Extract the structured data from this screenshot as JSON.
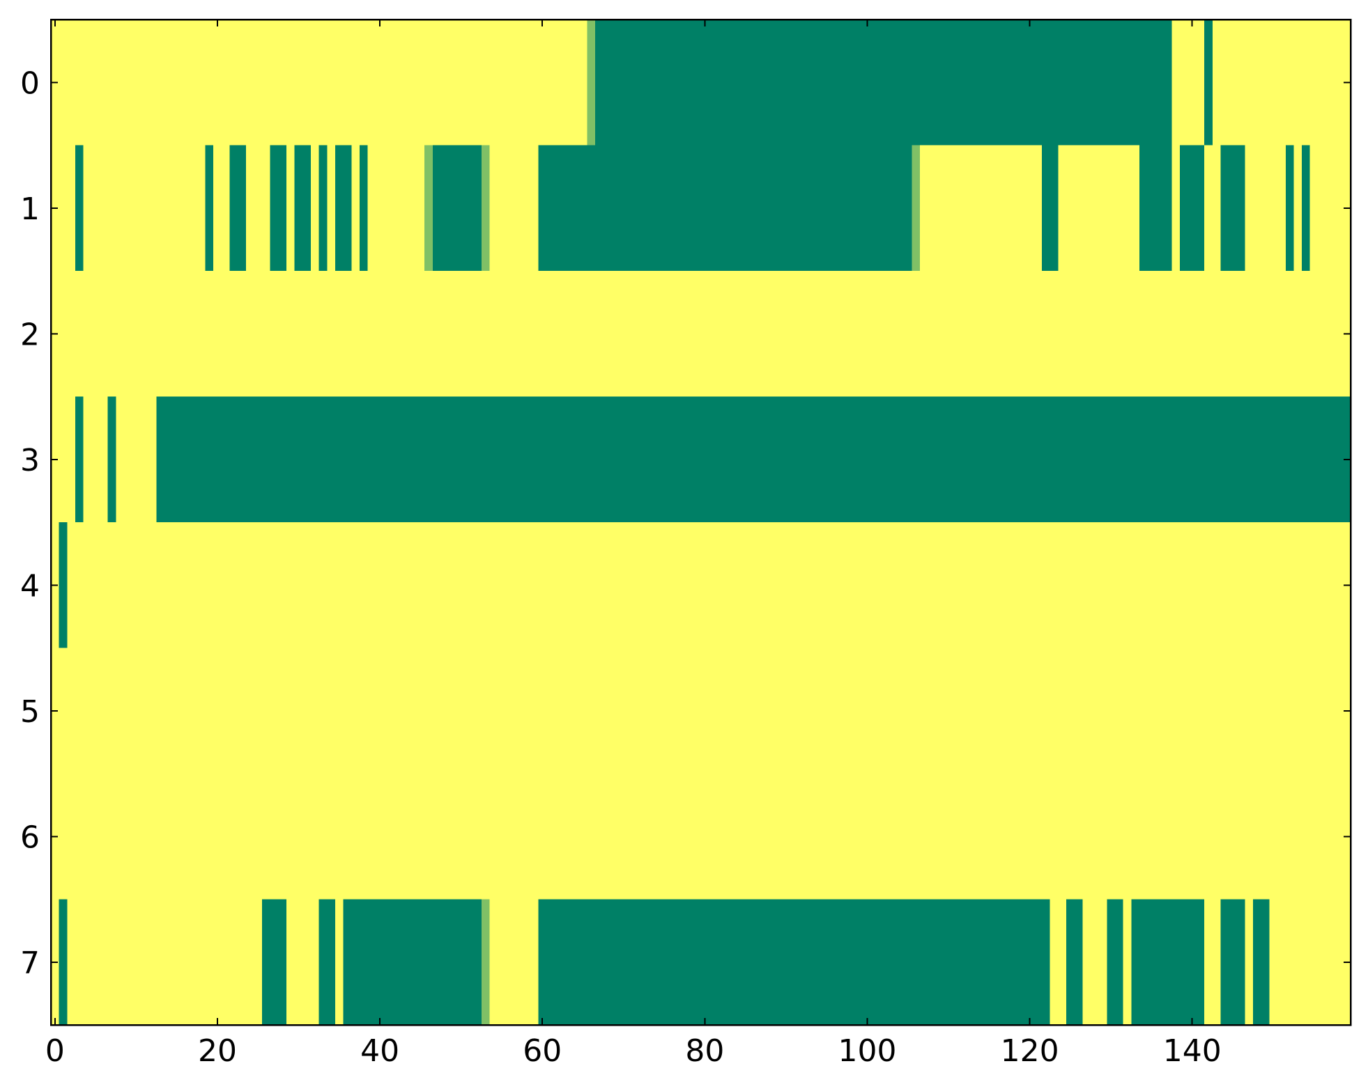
{
  "chart_data": {
    "type": "heatmap",
    "xlim": [
      -0.5,
      159.5
    ],
    "ylim": [
      7.5,
      -0.5
    ],
    "xticks": [
      0,
      20,
      40,
      60,
      80,
      100,
      120,
      140
    ],
    "yticks": [
      0,
      1,
      2,
      3,
      4,
      5,
      6,
      7
    ],
    "zlim": [
      0,
      1
    ],
    "cmap_colors": [
      "#008066",
      "#ffff66"
    ],
    "z": [
      [
        1,
        1,
        1,
        1,
        1,
        1,
        1,
        1,
        1,
        1,
        1,
        1,
        1,
        1,
        1,
        1,
        1,
        1,
        1,
        1,
        1,
        1,
        1,
        1,
        1,
        1,
        1,
        1,
        1,
        1,
        1,
        1,
        1,
        1,
        1,
        1,
        1,
        1,
        1,
        1,
        1,
        1,
        1,
        1,
        1,
        1,
        1,
        1,
        1,
        1,
        1,
        1,
        1,
        1,
        1,
        1,
        1,
        1,
        1,
        1,
        1,
        1,
        1,
        1,
        1,
        1,
        0.5,
        0,
        0,
        0,
        0,
        0,
        0,
        0,
        0,
        0,
        0,
        0,
        0,
        0,
        0,
        0,
        0,
        0,
        0,
        0,
        0,
        0,
        0,
        0,
        0,
        0,
        0,
        0,
        0,
        0,
        0,
        0,
        0,
        0,
        0,
        0,
        0,
        0,
        0,
        0,
        0,
        0,
        0,
        0,
        0,
        0,
        0,
        0,
        0,
        0,
        0,
        0,
        0,
        0,
        0,
        0,
        0,
        0,
        0,
        0,
        0,
        0,
        0,
        0,
        0,
        0,
        0,
        0,
        0,
        0,
        0,
        0,
        1,
        1,
        1,
        1,
        0,
        1,
        1,
        1,
        1,
        1,
        1,
        1,
        1,
        1,
        1,
        1,
        1,
        1,
        1,
        1,
        1,
        1
      ],
      [
        1,
        1,
        1,
        0,
        1,
        1,
        1,
        1,
        1,
        1,
        1,
        1,
        1,
        1,
        1,
        1,
        1,
        1,
        1,
        0,
        1,
        1,
        0,
        0,
        1,
        1,
        1,
        0,
        0,
        1,
        0,
        0,
        1,
        0,
        1,
        0,
        0,
        1,
        0,
        1,
        1,
        1,
        1,
        1,
        1,
        1,
        0.5,
        0,
        0,
        0,
        0,
        0,
        0,
        0.5,
        1,
        1,
        1,
        1,
        1,
        1,
        0,
        0,
        0,
        0,
        0,
        0,
        0,
        0,
        0,
        0,
        0,
        0,
        0,
        0,
        0,
        0,
        0,
        0,
        0,
        0,
        0,
        0,
        0,
        0,
        0,
        0,
        0,
        0,
        0,
        0,
        0,
        0,
        0,
        0,
        0,
        0,
        0,
        0,
        0,
        0,
        0,
        0,
        0,
        0,
        0,
        0,
        0.5,
        1,
        1,
        1,
        1,
        1,
        1,
        1,
        1,
        1,
        1,
        1,
        1,
        1,
        1,
        1,
        0,
        0,
        1,
        1,
        1,
        1,
        1,
        1,
        1,
        1,
        1,
        1,
        0,
        0,
        0,
        0,
        1,
        0,
        0,
        0,
        1,
        1,
        0,
        0,
        0,
        1,
        1,
        1,
        1,
        1,
        0,
        1,
        0,
        1,
        1,
        1,
        1,
        1
      ],
      [
        1,
        1,
        1,
        1,
        1,
        1,
        1,
        1,
        1,
        1,
        1,
        1,
        1,
        1,
        1,
        1,
        1,
        1,
        1,
        1,
        1,
        1,
        1,
        1,
        1,
        1,
        1,
        1,
        1,
        1,
        1,
        1,
        1,
        1,
        1,
        1,
        1,
        1,
        1,
        1,
        1,
        1,
        1,
        1,
        1,
        1,
        1,
        1,
        1,
        1,
        1,
        1,
        1,
        1,
        1,
        1,
        1,
        1,
        1,
        1,
        1,
        1,
        1,
        1,
        1,
        1,
        1,
        1,
        1,
        1,
        1,
        1,
        1,
        1,
        1,
        1,
        1,
        1,
        1,
        1,
        1,
        1,
        1,
        1,
        1,
        1,
        1,
        1,
        1,
        1,
        1,
        1,
        1,
        1,
        1,
        1,
        1,
        1,
        1,
        1,
        1,
        1,
        1,
        1,
        1,
        1,
        1,
        1,
        1,
        1,
        1,
        1,
        1,
        1,
        1,
        1,
        1,
        1,
        1,
        1,
        1,
        1,
        1,
        1,
        1,
        1,
        1,
        1,
        1,
        1,
        1,
        1,
        1,
        1,
        1,
        1,
        1,
        1,
        1,
        1,
        1,
        1,
        1,
        1,
        1,
        1,
        1,
        1,
        1,
        1,
        1,
        1,
        1,
        1,
        1,
        1,
        1,
        1,
        1,
        1
      ],
      [
        1,
        1,
        1,
        0,
        1,
        1,
        1,
        0,
        1,
        1,
        1,
        1,
        1,
        0,
        0,
        0,
        0,
        0,
        0,
        0,
        0,
        0,
        0,
        0,
        0,
        0,
        0,
        0,
        0,
        0,
        0,
        0,
        0,
        0,
        0,
        0,
        0,
        0,
        0,
        0,
        0,
        0,
        0,
        0,
        0,
        0,
        0,
        0,
        0,
        0,
        0,
        0,
        0,
        0,
        0,
        0,
        0,
        0,
        0,
        0,
        0,
        0,
        0,
        0,
        0,
        0,
        0,
        0,
        0,
        0,
        0,
        0,
        0,
        0,
        0,
        0,
        0,
        0,
        0,
        0,
        0,
        0,
        0,
        0,
        0,
        0,
        0,
        0,
        0,
        0,
        0,
        0,
        0,
        0,
        0,
        0,
        0,
        0,
        0,
        0,
        0,
        0,
        0,
        0,
        0,
        0,
        0,
        0,
        0,
        0,
        0,
        0,
        0,
        0,
        0,
        0,
        0,
        0,
        0,
        0,
        0,
        0,
        0,
        0,
        0,
        0,
        0,
        0,
        0,
        0,
        0,
        0,
        0,
        0,
        0,
        0,
        0,
        0,
        0,
        0,
        0,
        0,
        0,
        0,
        0,
        0,
        0,
        0,
        0,
        0,
        0,
        0,
        0,
        0,
        0,
        0,
        0,
        0,
        0,
        0
      ],
      [
        1,
        0,
        1,
        1,
        1,
        1,
        1,
        1,
        1,
        1,
        1,
        1,
        1,
        1,
        1,
        1,
        1,
        1,
        1,
        1,
        1,
        1,
        1,
        1,
        1,
        1,
        1,
        1,
        1,
        1,
        1,
        1,
        1,
        1,
        1,
        1,
        1,
        1,
        1,
        1,
        1,
        1,
        1,
        1,
        1,
        1,
        1,
        1,
        1,
        1,
        1,
        1,
        1,
        1,
        1,
        1,
        1,
        1,
        1,
        1,
        1,
        1,
        1,
        1,
        1,
        1,
        1,
        1,
        1,
        1,
        1,
        1,
        1,
        1,
        1,
        1,
        1,
        1,
        1,
        1,
        1,
        1,
        1,
        1,
        1,
        1,
        1,
        1,
        1,
        1,
        1,
        1,
        1,
        1,
        1,
        1,
        1,
        1,
        1,
        1,
        1,
        1,
        1,
        1,
        1,
        1,
        1,
        1,
        1,
        1,
        1,
        1,
        1,
        1,
        1,
        1,
        1,
        1,
        1,
        1,
        1,
        1,
        1,
        1,
        1,
        1,
        1,
        1,
        1,
        1,
        1,
        1,
        1,
        1,
        1,
        1,
        1,
        1,
        1,
        1,
        1,
        1,
        1,
        1,
        1,
        1,
        1,
        1,
        1,
        1,
        1,
        1,
        1,
        1,
        1,
        1,
        1,
        1,
        1,
        1
      ],
      [
        1,
        1,
        1,
        1,
        1,
        1,
        1,
        1,
        1,
        1,
        1,
        1,
        1,
        1,
        1,
        1,
        1,
        1,
        1,
        1,
        1,
        1,
        1,
        1,
        1,
        1,
        1,
        1,
        1,
        1,
        1,
        1,
        1,
        1,
        1,
        1,
        1,
        1,
        1,
        1,
        1,
        1,
        1,
        1,
        1,
        1,
        1,
        1,
        1,
        1,
        1,
        1,
        1,
        1,
        1,
        1,
        1,
        1,
        1,
        1,
        1,
        1,
        1,
        1,
        1,
        1,
        1,
        1,
        1,
        1,
        1,
        1,
        1,
        1,
        1,
        1,
        1,
        1,
        1,
        1,
        1,
        1,
        1,
        1,
        1,
        1,
        1,
        1,
        1,
        1,
        1,
        1,
        1,
        1,
        1,
        1,
        1,
        1,
        1,
        1,
        1,
        1,
        1,
        1,
        1,
        1,
        1,
        1,
        1,
        1,
        1,
        1,
        1,
        1,
        1,
        1,
        1,
        1,
        1,
        1,
        1,
        1,
        1,
        1,
        1,
        1,
        1,
        1,
        1,
        1,
        1,
        1,
        1,
        1,
        1,
        1,
        1,
        1,
        1,
        1,
        1,
        1,
        1,
        1,
        1,
        1,
        1,
        1,
        1,
        1,
        1,
        1,
        1,
        1,
        1,
        1,
        1,
        1,
        1,
        1
      ],
      [
        1,
        1,
        1,
        1,
        1,
        1,
        1,
        1,
        1,
        1,
        1,
        1,
        1,
        1,
        1,
        1,
        1,
        1,
        1,
        1,
        1,
        1,
        1,
        1,
        1,
        1,
        1,
        1,
        1,
        1,
        1,
        1,
        1,
        1,
        1,
        1,
        1,
        1,
        1,
        1,
        1,
        1,
        1,
        1,
        1,
        1,
        1,
        1,
        1,
        1,
        1,
        1,
        1,
        1,
        1,
        1,
        1,
        1,
        1,
        1,
        1,
        1,
        1,
        1,
        1,
        1,
        1,
        1,
        1,
        1,
        1,
        1,
        1,
        1,
        1,
        1,
        1,
        1,
        1,
        1,
        1,
        1,
        1,
        1,
        1,
        1,
        1,
        1,
        1,
        1,
        1,
        1,
        1,
        1,
        1,
        1,
        1,
        1,
        1,
        1,
        1,
        1,
        1,
        1,
        1,
        1,
        1,
        1,
        1,
        1,
        1,
        1,
        1,
        1,
        1,
        1,
        1,
        1,
        1,
        1,
        1,
        1,
        1,
        1,
        1,
        1,
        1,
        1,
        1,
        1,
        1,
        1,
        1,
        1,
        1,
        1,
        1,
        1,
        1,
        1,
        1,
        1,
        1,
        1,
        1,
        1,
        1,
        1,
        1,
        1,
        1,
        1,
        1,
        1,
        1,
        1,
        1,
        1,
        1,
        1
      ],
      [
        1,
        0,
        1,
        1,
        1,
        1,
        1,
        1,
        1,
        1,
        1,
        1,
        1,
        1,
        1,
        1,
        1,
        1,
        1,
        1,
        1,
        1,
        1,
        1,
        1,
        1,
        0,
        0,
        0,
        1,
        1,
        1,
        1,
        0,
        0,
        1,
        0,
        0,
        0,
        0,
        0,
        0,
        0,
        0,
        0,
        0,
        0,
        0,
        0,
        0,
        0,
        0,
        0,
        0.5,
        1,
        1,
        1,
        1,
        1,
        1,
        0,
        0,
        0,
        0,
        0,
        0,
        0,
        0,
        0,
        0,
        0,
        0,
        0,
        0,
        0,
        0,
        0,
        0,
        0,
        0,
        0,
        0,
        0,
        0,
        0,
        0,
        0,
        0,
        0,
        0,
        0,
        0,
        0,
        0,
        0,
        0,
        0,
        0,
        0,
        0,
        0,
        0,
        0,
        0,
        0,
        0,
        0,
        0,
        0,
        0,
        0,
        0,
        0,
        0,
        0,
        0,
        0,
        0,
        0,
        0,
        0,
        0,
        0,
        1,
        1,
        0,
        0,
        1,
        1,
        1,
        0,
        0,
        1,
        0,
        0,
        0,
        0,
        0,
        0,
        0,
        0,
        0,
        1,
        1,
        0,
        0,
        0,
        1,
        0,
        0,
        1,
        1,
        1,
        1,
        1,
        1,
        1,
        1,
        1,
        1
      ]
    ]
  }
}
